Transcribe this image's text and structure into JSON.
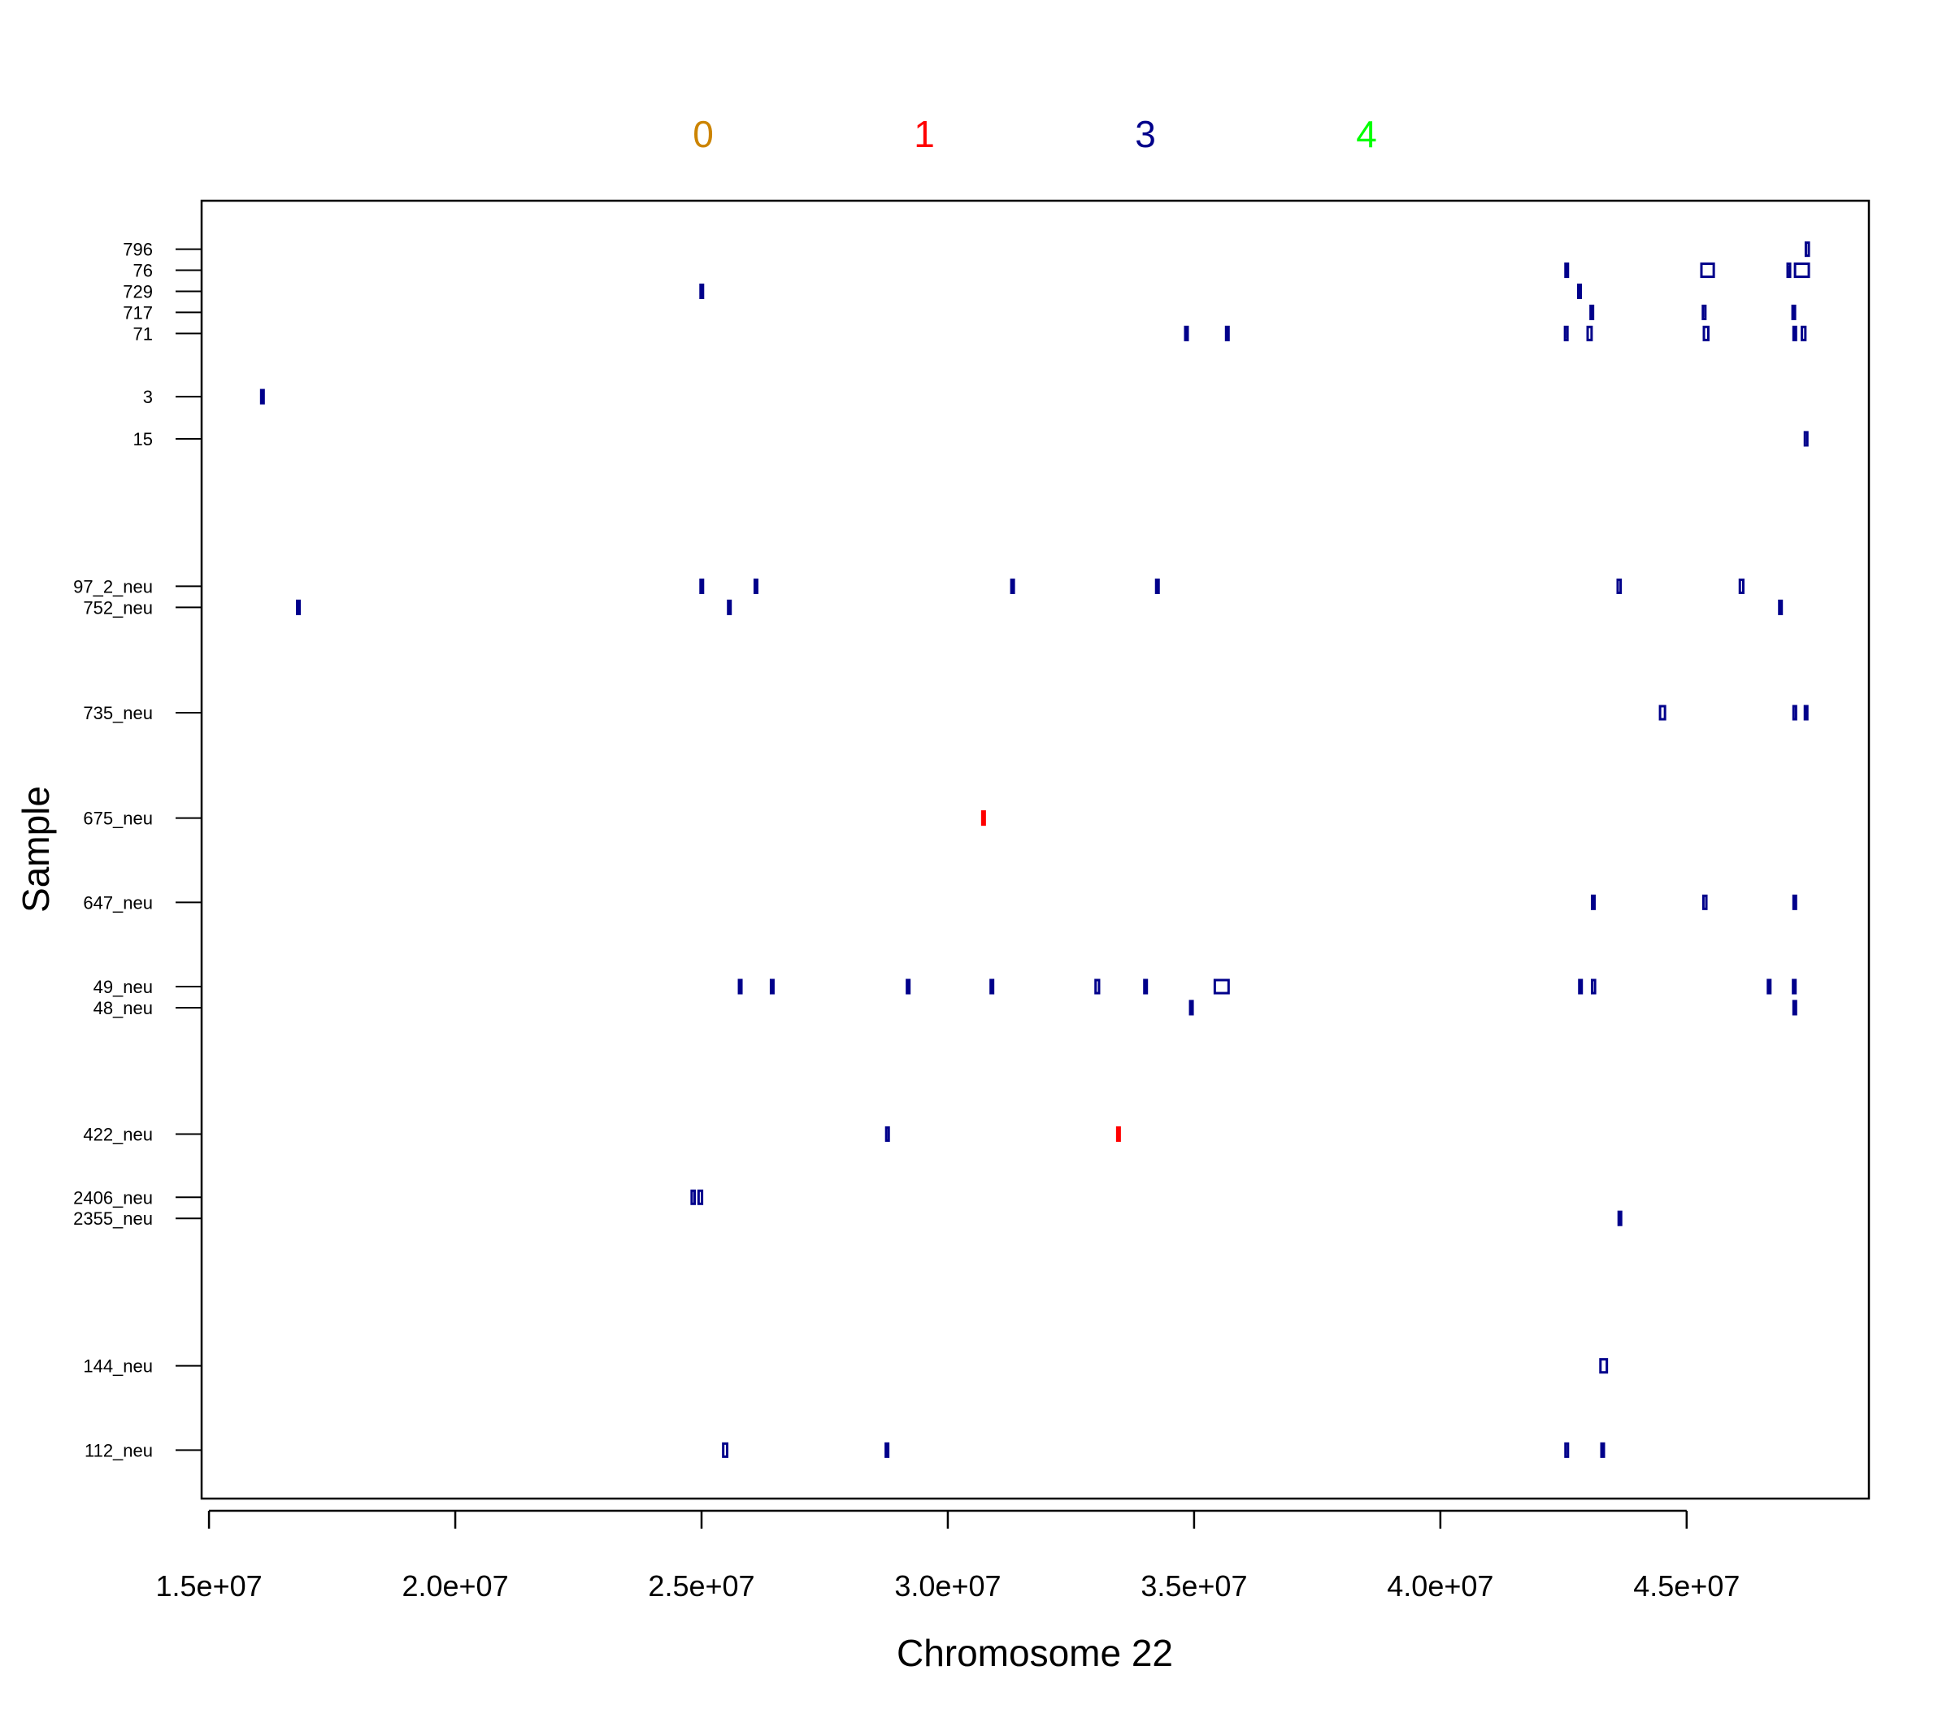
{
  "chart_data": {
    "type": "scatter",
    "title": "",
    "xlabel": "Chromosome 22",
    "ylabel": "Sample",
    "xlim": [
      14850000,
      48700000
    ],
    "x_ticks": [
      15000000,
      20000000,
      25000000,
      30000000,
      35000000,
      40000000,
      45000000
    ],
    "x_tick_labels": [
      "1.5e+07",
      "2.0e+07",
      "2.5e+07",
      "3.0e+07",
      "3.5e+07",
      "4.0e+07",
      "4.5e+07"
    ],
    "ylim": [
      -0.3,
      61.3
    ],
    "grid": false,
    "legend_placement": "top",
    "legend": [
      {
        "label": "0",
        "color": "#CC8400"
      },
      {
        "label": "1",
        "color": "#FF0000"
      },
      {
        "label": "3",
        "color": "#00008B"
      },
      {
        "label": "4",
        "color": "#00FF00"
      }
    ],
    "samples": [
      {
        "name": "796",
        "y": 59
      },
      {
        "name": "76",
        "y": 58
      },
      {
        "name": "729",
        "y": 57
      },
      {
        "name": "717",
        "y": 56
      },
      {
        "name": "71",
        "y": 55
      },
      {
        "name": "3",
        "y": 52
      },
      {
        "name": "15",
        "y": 50
      },
      {
        "name": "97_2_neu",
        "y": 43
      },
      {
        "name": "752_neu",
        "y": 42
      },
      {
        "name": "735_neu",
        "y": 37
      },
      {
        "name": "675_neu",
        "y": 32
      },
      {
        "name": "647_neu",
        "y": 28
      },
      {
        "name": "49_neu",
        "y": 24
      },
      {
        "name": "48_neu",
        "y": 23
      },
      {
        "name": "422_neu",
        "y": 17
      },
      {
        "name": "2406_neu",
        "y": 14
      },
      {
        "name": "2355_neu",
        "y": 13
      },
      {
        "name": "144_neu",
        "y": 6
      },
      {
        "name": "112_neu",
        "y": 2
      }
    ],
    "series": [
      {
        "name": "1",
        "color": "#FF0000",
        "segments": [
          {
            "sample": "675_neu",
            "start": 30700000,
            "end": 30720000
          },
          {
            "sample": "422_neu",
            "start": 33440000,
            "end": 33480000
          }
        ]
      },
      {
        "name": "3",
        "color": "#00008B",
        "segments": [
          {
            "sample": "796",
            "start": 47420000,
            "end": 47480000
          },
          {
            "sample": "76",
            "start": 42540000,
            "end": 42580000
          },
          {
            "sample": "76",
            "start": 45300000,
            "end": 45550000
          },
          {
            "sample": "76",
            "start": 47050000,
            "end": 47100000
          },
          {
            "sample": "76",
            "start": 47200000,
            "end": 47480000
          },
          {
            "sample": "729",
            "start": 42800000,
            "end": 42830000
          },
          {
            "sample": "717",
            "start": 43050000,
            "end": 43080000
          },
          {
            "sample": "717",
            "start": 45330000,
            "end": 45380000
          },
          {
            "sample": "717",
            "start": 47150000,
            "end": 47180000
          },
          {
            "sample": "71",
            "start": 34820000,
            "end": 34840000
          },
          {
            "sample": "71",
            "start": 35650000,
            "end": 35690000
          },
          {
            "sample": "71",
            "start": 42530000,
            "end": 42580000
          },
          {
            "sample": "71",
            "start": 42990000,
            "end": 43070000
          },
          {
            "sample": "71",
            "start": 45350000,
            "end": 45440000
          },
          {
            "sample": "71",
            "start": 47170000,
            "end": 47210000
          },
          {
            "sample": "71",
            "start": 47340000,
            "end": 47410000
          },
          {
            "sample": "3",
            "start": 16060000,
            "end": 16100000
          },
          {
            "sample": "15",
            "start": 47400000,
            "end": 47450000
          },
          {
            "sample": "97_2_neu",
            "start": 24980000,
            "end": 25000000
          },
          {
            "sample": "97_2_neu",
            "start": 26080000,
            "end": 26110000
          },
          {
            "sample": "97_2_neu",
            "start": 31290000,
            "end": 31320000
          },
          {
            "sample": "97_2_neu",
            "start": 34230000,
            "end": 34250000
          },
          {
            "sample": "97_2_neu",
            "start": 43600000,
            "end": 43660000
          },
          {
            "sample": "97_2_neu",
            "start": 46080000,
            "end": 46150000
          },
          {
            "sample": "729",
            "start": 24980000,
            "end": 25010000
          },
          {
            "sample": "752_neu",
            "start": 16790000,
            "end": 16800000
          },
          {
            "sample": "752_neu",
            "start": 25540000,
            "end": 25560000
          },
          {
            "sample": "752_neu",
            "start": 46880000,
            "end": 46900000
          },
          {
            "sample": "735_neu",
            "start": 44460000,
            "end": 44560000
          },
          {
            "sample": "735_neu",
            "start": 47170000,
            "end": 47220000
          },
          {
            "sample": "735_neu",
            "start": 47400000,
            "end": 47440000
          },
          {
            "sample": "647_neu",
            "start": 43080000,
            "end": 43120000
          },
          {
            "sample": "647_neu",
            "start": 45340000,
            "end": 45400000
          },
          {
            "sample": "647_neu",
            "start": 47170000,
            "end": 47210000
          },
          {
            "sample": "49_neu",
            "start": 25760000,
            "end": 25800000
          },
          {
            "sample": "49_neu",
            "start": 26410000,
            "end": 26450000
          },
          {
            "sample": "49_neu",
            "start": 29170000,
            "end": 29190000
          },
          {
            "sample": "49_neu",
            "start": 30870000,
            "end": 30900000
          },
          {
            "sample": "49_neu",
            "start": 33000000,
            "end": 33070000
          },
          {
            "sample": "49_neu",
            "start": 33990000,
            "end": 34030000
          },
          {
            "sample": "49_neu",
            "start": 35420000,
            "end": 35700000
          },
          {
            "sample": "49_neu",
            "start": 42820000,
            "end": 42850000
          },
          {
            "sample": "49_neu",
            "start": 43080000,
            "end": 43140000
          },
          {
            "sample": "49_neu",
            "start": 46650000,
            "end": 46680000
          },
          {
            "sample": "49_neu",
            "start": 47160000,
            "end": 47200000
          },
          {
            "sample": "48_neu",
            "start": 34920000,
            "end": 34940000
          },
          {
            "sample": "48_neu",
            "start": 47170000,
            "end": 47190000
          },
          {
            "sample": "422_neu",
            "start": 28750000,
            "end": 28800000
          },
          {
            "sample": "2406_neu",
            "start": 24800000,
            "end": 24860000
          },
          {
            "sample": "2406_neu",
            "start": 24940000,
            "end": 25010000
          },
          {
            "sample": "2355_neu",
            "start": 43620000,
            "end": 43660000
          },
          {
            "sample": "144_neu",
            "start": 43250000,
            "end": 43380000
          },
          {
            "sample": "112_neu",
            "start": 25440000,
            "end": 25520000
          },
          {
            "sample": "112_neu",
            "start": 28740000,
            "end": 28780000
          },
          {
            "sample": "112_neu",
            "start": 42540000,
            "end": 42590000
          },
          {
            "sample": "112_neu",
            "start": 43270000,
            "end": 43300000
          }
        ]
      }
    ]
  }
}
